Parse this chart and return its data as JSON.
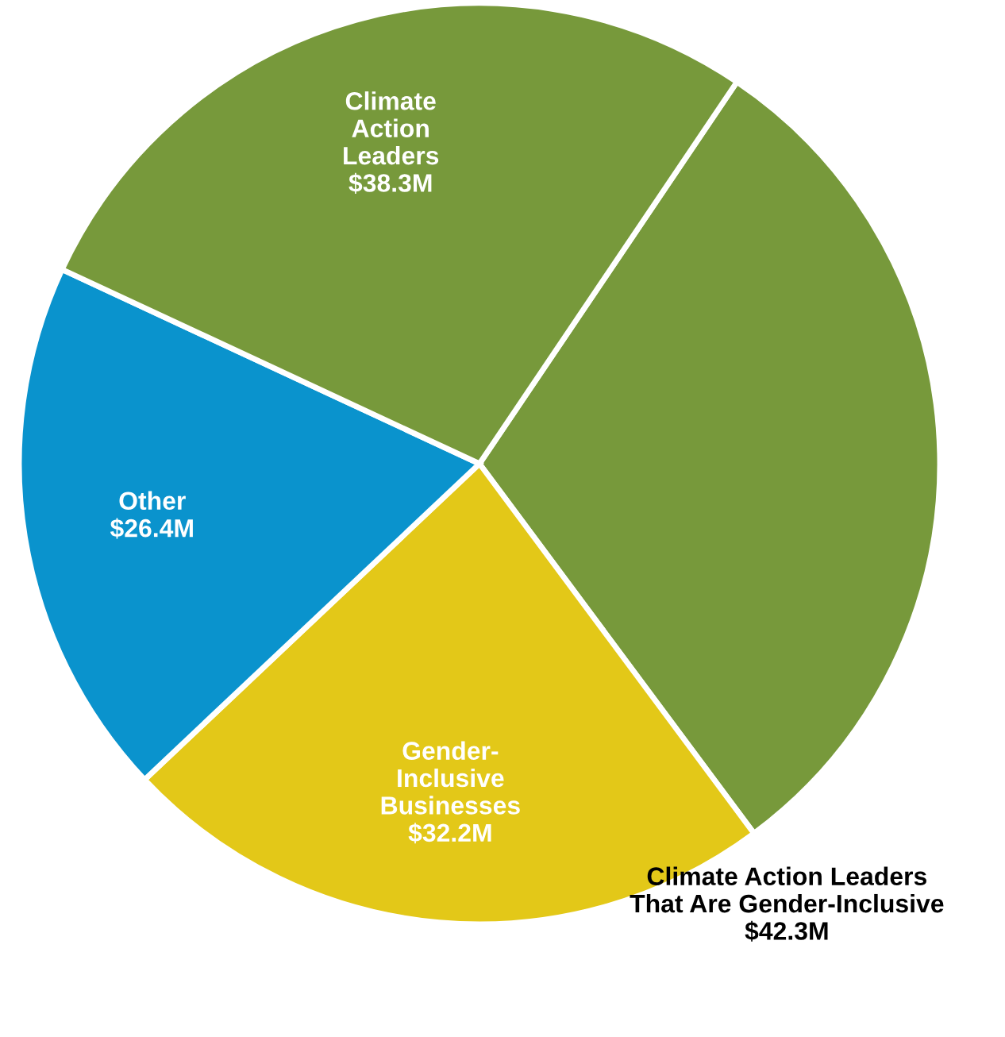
{
  "chart_data": {
    "type": "pie",
    "categories": [
      "Climate Action Leaders\nThat Are Gender-Inclusive",
      "Gender-\nInclusive\nBusinesses",
      "Other",
      "Climate\nAction\nLeaders"
    ],
    "values": [
      42.3,
      32.2,
      26.4,
      38.3
    ],
    "value_labels": [
      "$42.3M",
      "$32.2M",
      "$26.4M",
      "$38.3M"
    ],
    "colors": [
      "#77993b",
      "#e3c818",
      "#0a93cd",
      "#77993b"
    ],
    "legend": false
  }
}
